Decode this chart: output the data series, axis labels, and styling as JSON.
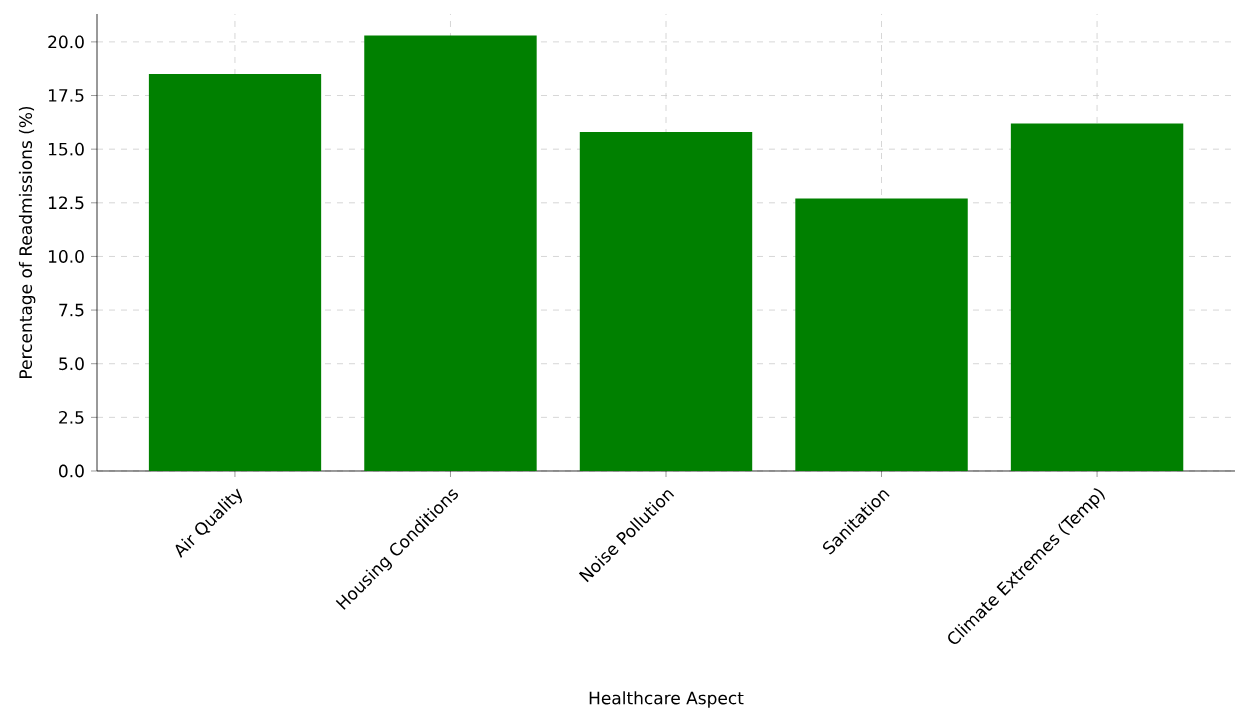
{
  "chart_data": {
    "type": "bar",
    "xlabel": "Healthcare Aspect",
    "ylabel": "Percentage of Readmissions (%)",
    "categories": [
      "Air Quality",
      "Housing Conditions",
      "Noise Pollution",
      "Sanitation",
      "Climate Extremes (Temp)"
    ],
    "values": [
      18.5,
      20.3,
      15.8,
      12.7,
      16.2
    ],
    "color": "#008000",
    "ylim": [
      0,
      21.3
    ],
    "yticks": [
      {
        "value": 0,
        "label": "0.0"
      },
      {
        "value": 2.5,
        "label": "2.5"
      },
      {
        "value": 5,
        "label": "5.0"
      },
      {
        "value": 7.5,
        "label": "7.5"
      },
      {
        "value": 10,
        "label": "10.0"
      },
      {
        "value": 12.5,
        "label": "12.5"
      },
      {
        "value": 15,
        "label": "15.0"
      },
      {
        "value": 17.5,
        "label": "17.5"
      },
      {
        "value": 20,
        "label": "20.0"
      }
    ],
    "grid": true
  }
}
